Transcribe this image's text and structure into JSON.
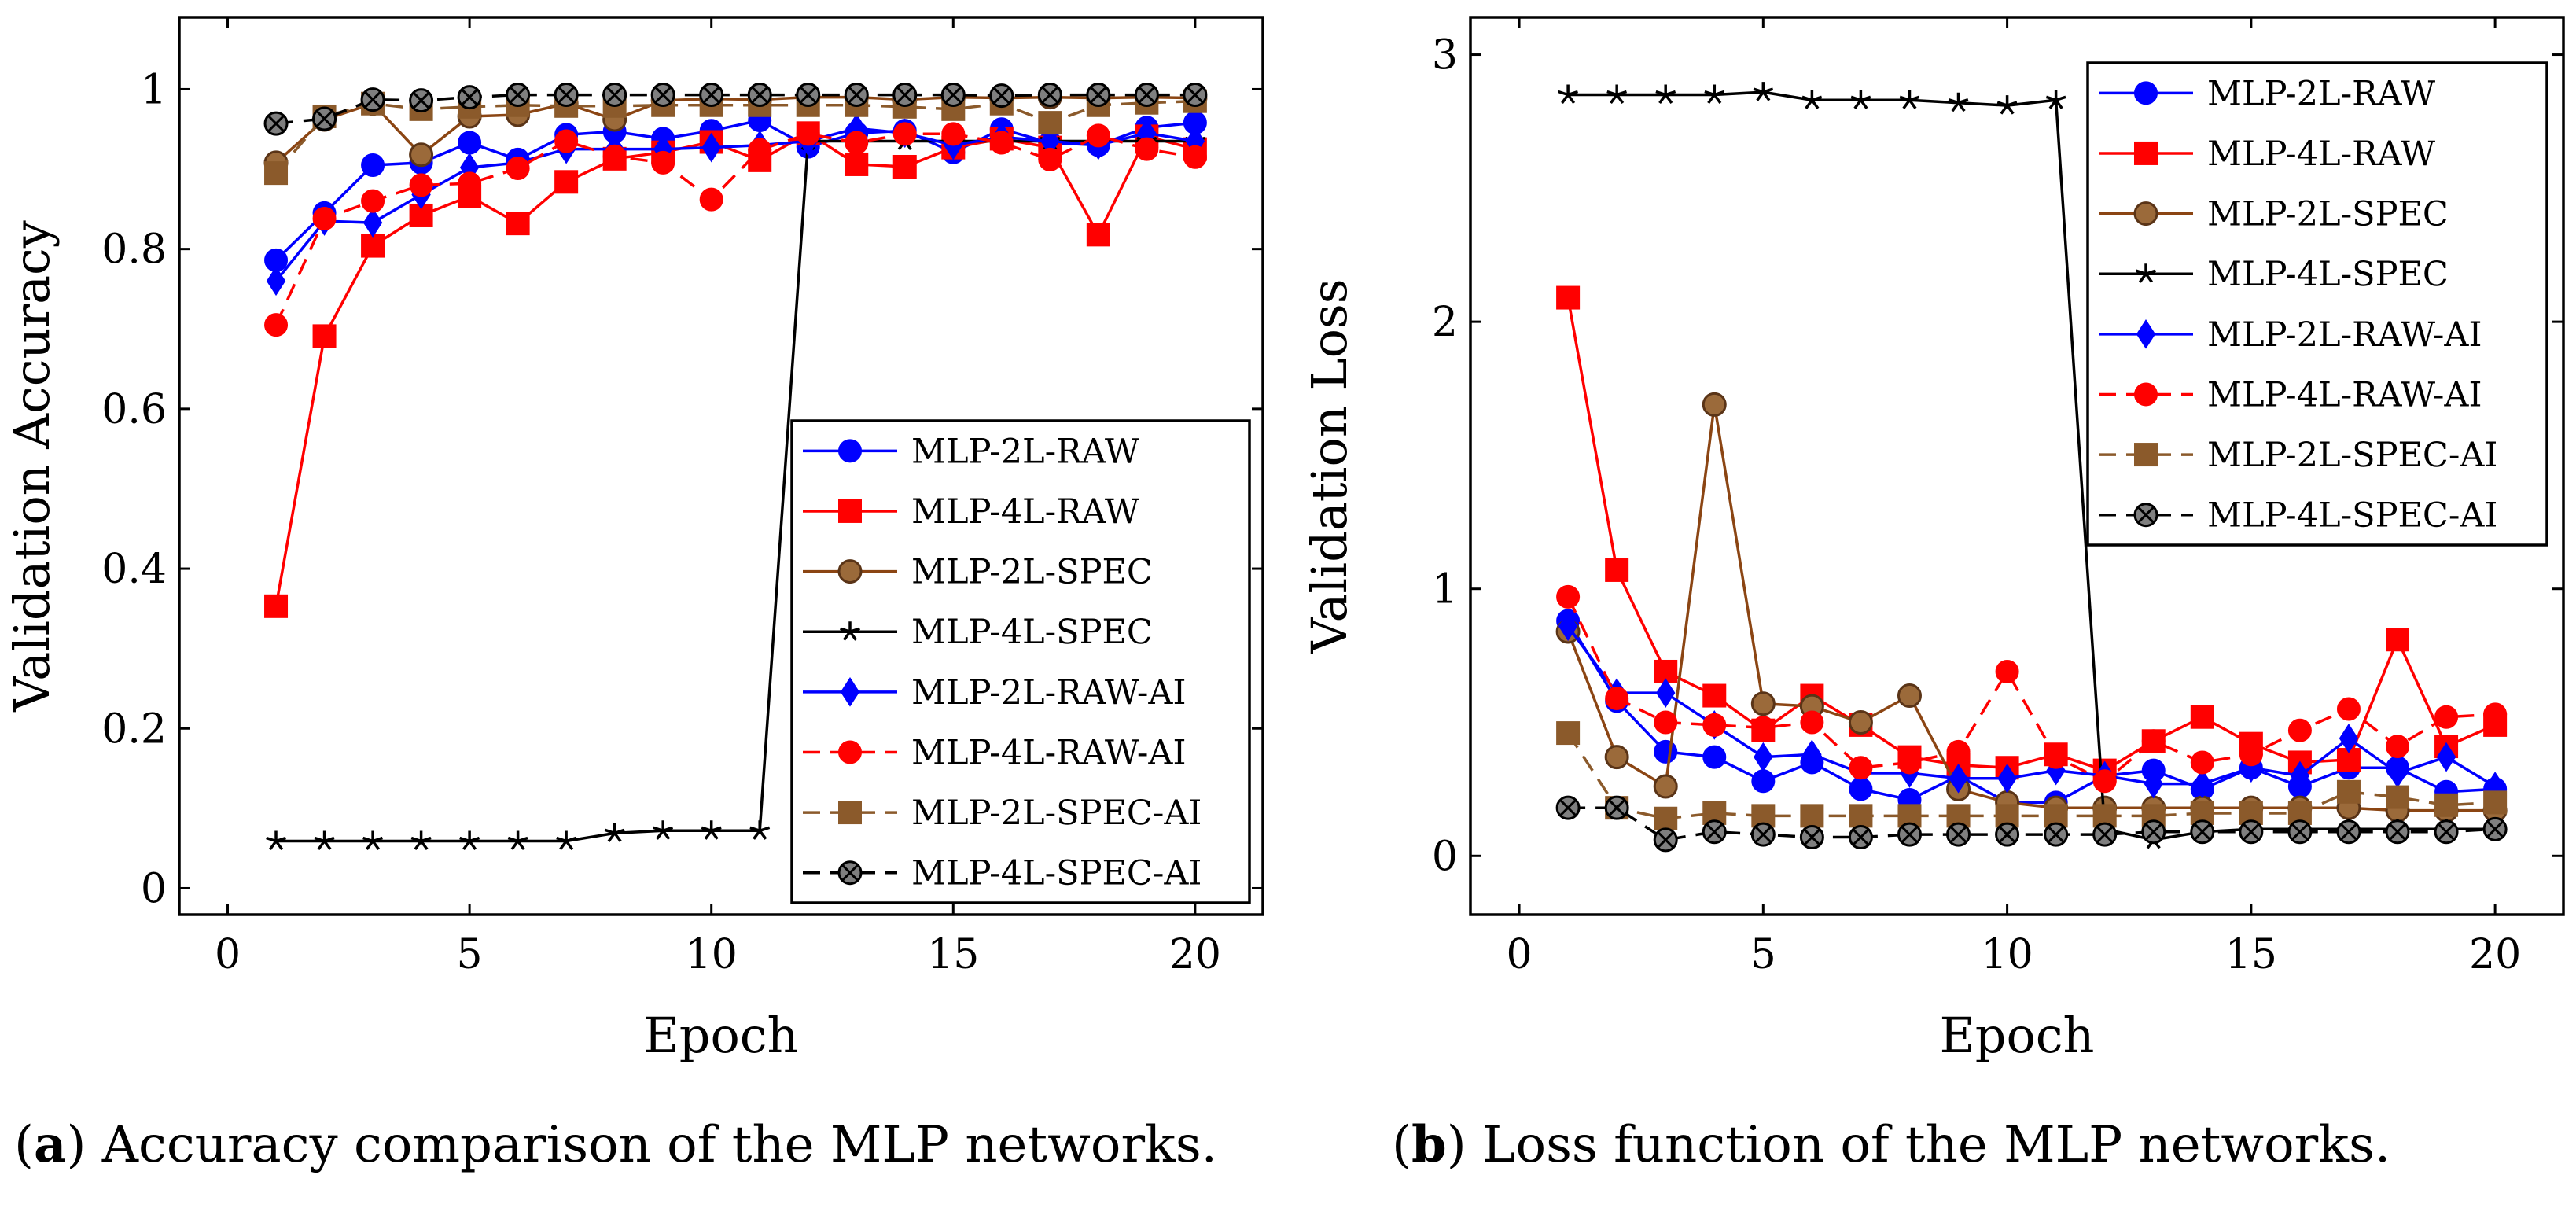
{
  "captions": [
    {
      "letter": "a",
      "text": " Accuracy comparison of the MLP networks."
    },
    {
      "letter": "b",
      "text": " Loss function of the MLP networks."
    }
  ],
  "chart_data": [
    {
      "type": "line",
      "xlabel": "Epoch",
      "ylabel": "Validation Accuracy",
      "xlim": [
        -1,
        21.4
      ],
      "ylim": [
        -0.033,
        1.09
      ],
      "xticks": [
        0,
        5,
        10,
        15,
        20
      ],
      "xtick_labels": [
        "0",
        "5",
        "10",
        "15",
        "20"
      ],
      "yticks": [
        0,
        0.2,
        0.4,
        0.6,
        0.8,
        1
      ],
      "ytick_labels": [
        "0",
        "0.2",
        "0.4",
        "0.6",
        "0.8",
        "1"
      ],
      "legend_position": "bottom-right",
      "x": [
        1,
        2,
        3,
        4,
        5,
        6,
        7,
        8,
        9,
        10,
        11,
        12,
        13,
        14,
        15,
        16,
        17,
        18,
        19,
        20
      ],
      "series": [
        {
          "name": "MLP-2L-RAW",
          "color": "#0000ff",
          "dash": "solid",
          "marker": "circle",
          "values": [
            0.786,
            0.845,
            0.905,
            0.908,
            0.933,
            0.912,
            0.943,
            0.947,
            0.938,
            0.948,
            0.961,
            0.928,
            0.945,
            0.948,
            0.921,
            0.95,
            0.933,
            0.93,
            0.952,
            0.958
          ]
        },
        {
          "name": "MLP-4L-RAW",
          "color": "#ff0000",
          "dash": "solid",
          "marker": "square",
          "values": [
            0.353,
            0.691,
            0.804,
            0.842,
            0.866,
            0.832,
            0.884,
            0.913,
            0.921,
            0.934,
            0.911,
            0.945,
            0.906,
            0.903,
            0.927,
            0.938,
            0.927,
            0.818,
            0.941,
            0.925
          ]
        },
        {
          "name": "MLP-2L-SPEC",
          "color": "#8b4513",
          "dash": "solid",
          "marker": "circle-fill",
          "values": [
            0.908,
            0.962,
            0.982,
            0.918,
            0.966,
            0.968,
            0.982,
            0.962,
            0.986,
            0.988,
            0.987,
            0.99,
            0.99,
            0.987,
            0.99,
            0.989,
            0.99,
            0.989,
            0.99,
            0.989
          ]
        },
        {
          "name": "MLP-4L-SPEC",
          "color": "#000000",
          "dash": "solid",
          "marker": "star",
          "values": [
            0.059,
            0.059,
            0.059,
            0.059,
            0.059,
            0.059,
            0.059,
            0.069,
            0.072,
            0.072,
            0.072,
            0.935,
            0.935,
            0.935,
            0.935,
            0.935,
            0.935,
            0.935,
            0.935,
            0.935
          ]
        },
        {
          "name": "MLP-2L-RAW-AI",
          "color": "#0000ff",
          "dash": "solid",
          "marker": "diamond",
          "values": [
            0.76,
            0.835,
            0.833,
            0.868,
            0.902,
            0.908,
            0.925,
            0.925,
            0.925,
            0.927,
            0.93,
            0.935,
            0.951,
            0.945,
            0.93,
            0.94,
            0.935,
            0.93,
            0.945,
            0.935
          ]
        },
        {
          "name": "MLP-4L-RAW-AI",
          "color": "#ff0000",
          "dash": "dashed",
          "marker": "circle",
          "values": [
            0.705,
            0.838,
            0.86,
            0.88,
            0.882,
            0.901,
            0.935,
            0.916,
            0.908,
            0.862,
            0.924,
            0.944,
            0.933,
            0.944,
            0.944,
            0.933,
            0.912,
            0.942,
            0.925,
            0.915
          ]
        },
        {
          "name": "MLP-2L-SPEC-AI",
          "color": "#8b5a2b",
          "dash": "dashed",
          "marker": "square",
          "values": [
            0.895,
            0.966,
            0.982,
            0.975,
            0.978,
            0.98,
            0.979,
            0.979,
            0.98,
            0.98,
            0.98,
            0.98,
            0.98,
            0.978,
            0.975,
            0.982,
            0.958,
            0.98,
            0.983,
            0.985
          ]
        },
        {
          "name": "MLP-4L-SPEC-AI",
          "color": "#000000",
          "dash": "dashed",
          "marker": "otimes",
          "values": [
            0.957,
            0.963,
            0.987,
            0.986,
            0.99,
            0.993,
            0.993,
            0.993,
            0.993,
            0.993,
            0.993,
            0.993,
            0.993,
            0.993,
            0.993,
            0.992,
            0.993,
            0.993,
            0.993,
            0.993
          ]
        }
      ]
    },
    {
      "type": "line",
      "xlabel": "Epoch",
      "ylabel": "Validation Loss",
      "xlim": [
        -1,
        21.4
      ],
      "ylim": [
        -0.22,
        3.14
      ],
      "xticks": [
        0,
        5,
        10,
        15,
        20
      ],
      "xtick_labels": [
        "0",
        "5",
        "10",
        "15",
        "20"
      ],
      "yticks": [
        0,
        1,
        2,
        3
      ],
      "ytick_labels": [
        "0",
        "1",
        "2",
        "3"
      ],
      "legend_position": "top-right",
      "x": [
        1,
        2,
        3,
        4,
        5,
        6,
        7,
        8,
        9,
        10,
        11,
        12,
        13,
        14,
        15,
        16,
        17,
        18,
        19,
        20
      ],
      "series": [
        {
          "name": "MLP-2L-RAW",
          "color": "#0000ff",
          "dash": "solid",
          "marker": "circle",
          "values": [
            0.88,
            0.58,
            0.39,
            0.37,
            0.28,
            0.35,
            0.25,
            0.21,
            0.3,
            0.2,
            0.2,
            0.3,
            0.32,
            0.25,
            0.33,
            0.26,
            0.33,
            0.33,
            0.24,
            0.25
          ]
        },
        {
          "name": "MLP-4L-RAW",
          "color": "#ff0000",
          "dash": "solid",
          "marker": "square",
          "values": [
            2.09,
            1.07,
            0.69,
            0.6,
            0.47,
            0.6,
            0.49,
            0.37,
            0.34,
            0.33,
            0.38,
            0.32,
            0.43,
            0.52,
            0.42,
            0.35,
            0.36,
            0.81,
            0.41,
            0.49
          ]
        },
        {
          "name": "MLP-2L-SPEC",
          "color": "#8b4513",
          "dash": "solid",
          "marker": "circle-fill",
          "values": [
            0.84,
            0.37,
            0.26,
            1.69,
            0.57,
            0.56,
            0.5,
            0.6,
            0.25,
            0.2,
            0.18,
            0.18,
            0.18,
            0.18,
            0.18,
            0.18,
            0.18,
            0.17,
            0.17,
            0.17
          ]
        },
        {
          "name": "MLP-4L-SPEC",
          "color": "#000000",
          "dash": "solid",
          "marker": "star",
          "values": [
            2.85,
            2.85,
            2.85,
            2.85,
            2.86,
            2.83,
            2.83,
            2.83,
            2.82,
            2.81,
            2.83,
            0.1,
            0.06,
            0.09,
            0.1,
            0.1,
            0.1,
            0.1,
            0.1,
            0.1
          ]
        },
        {
          "name": "MLP-2L-RAW-AI",
          "color": "#0000ff",
          "dash": "solid",
          "marker": "diamond",
          "values": [
            0.86,
            0.61,
            0.61,
            0.49,
            0.37,
            0.38,
            0.31,
            0.31,
            0.29,
            0.29,
            0.32,
            0.3,
            0.27,
            0.27,
            0.33,
            0.3,
            0.44,
            0.31,
            0.37,
            0.26
          ]
        },
        {
          "name": "MLP-4L-RAW-AI",
          "color": "#ff0000",
          "dash": "dashed",
          "marker": "circle",
          "values": [
            0.97,
            0.59,
            0.5,
            0.49,
            0.48,
            0.5,
            0.33,
            0.35,
            0.39,
            0.69,
            0.37,
            0.28,
            0.43,
            0.35,
            0.38,
            0.47,
            0.55,
            0.41,
            0.52,
            0.53
          ]
        },
        {
          "name": "MLP-2L-SPEC-AI",
          "color": "#8b5a2b",
          "dash": "dashed",
          "marker": "square",
          "values": [
            0.46,
            0.18,
            0.14,
            0.16,
            0.15,
            0.15,
            0.15,
            0.15,
            0.15,
            0.15,
            0.15,
            0.15,
            0.15,
            0.16,
            0.16,
            0.16,
            0.24,
            0.22,
            0.19,
            0.2
          ]
        },
        {
          "name": "MLP-4L-SPEC-AI",
          "color": "#000000",
          "dash": "dashed",
          "marker": "otimes",
          "values": [
            0.18,
            0.18,
            0.06,
            0.09,
            0.08,
            0.07,
            0.07,
            0.08,
            0.08,
            0.08,
            0.08,
            0.08,
            0.09,
            0.09,
            0.09,
            0.09,
            0.09,
            0.09,
            0.09,
            0.1
          ]
        }
      ]
    }
  ]
}
